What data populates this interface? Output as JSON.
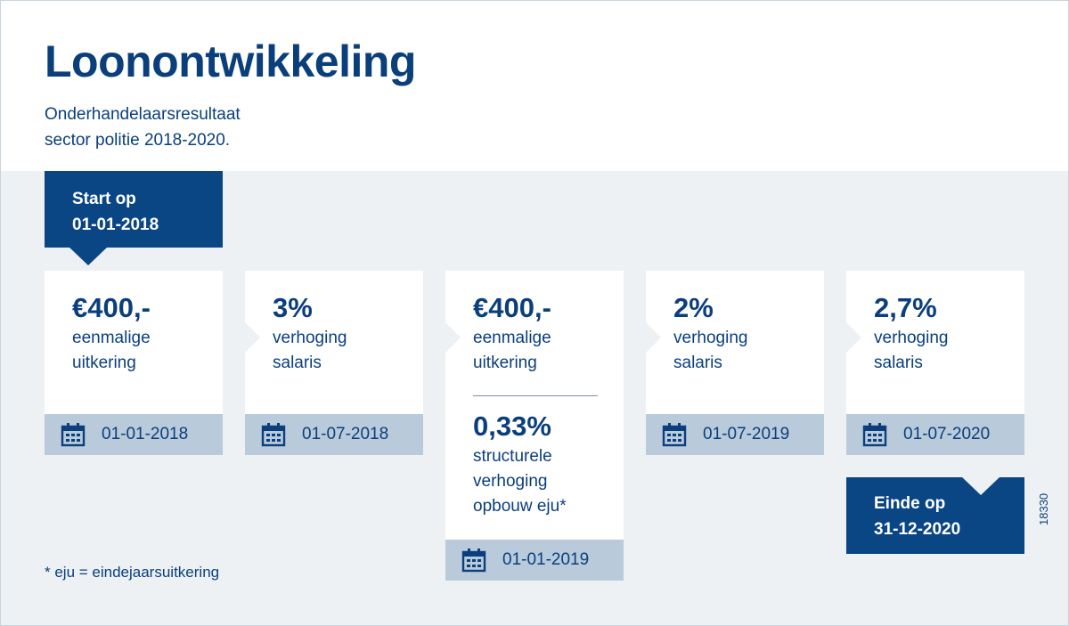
{
  "title": "Loonontwikkeling",
  "subtitle": [
    "Onderhandelaarsresultaat",
    "sector politie 2018-2020."
  ],
  "start": [
    "Start op",
    "01-01-2018"
  ],
  "end": [
    "Einde op",
    "31-12-2020"
  ],
  "cards": [
    {
      "value": "€400,-",
      "desc": [
        "eenmalige",
        "uitkering"
      ],
      "date": "01-01-2018"
    },
    {
      "value": "3%",
      "desc": [
        "verhoging",
        "salaris"
      ],
      "date": "01-07-2018"
    },
    {
      "value": "€400,-",
      "desc": [
        "eenmalige",
        "uitkering"
      ],
      "value2": "0,33%",
      "desc2": [
        "structurele",
        "verhoging",
        "opbouw eju*"
      ],
      "date": "01-01-2019"
    },
    {
      "value": "2%",
      "desc": [
        "verhoging",
        "salaris"
      ],
      "date": "01-07-2019"
    },
    {
      "value": "2,7%",
      "desc": [
        "verhoging",
        "salaris"
      ],
      "date": "01-07-2020"
    }
  ],
  "footnote": "* eju = eindejaarsuitkering",
  "code": "18330",
  "icons": {
    "calendar": "calendar-icon"
  },
  "colors": {
    "primary": "#0a4584",
    "band": "#edf1f4",
    "datebar": "#b9cadb"
  }
}
